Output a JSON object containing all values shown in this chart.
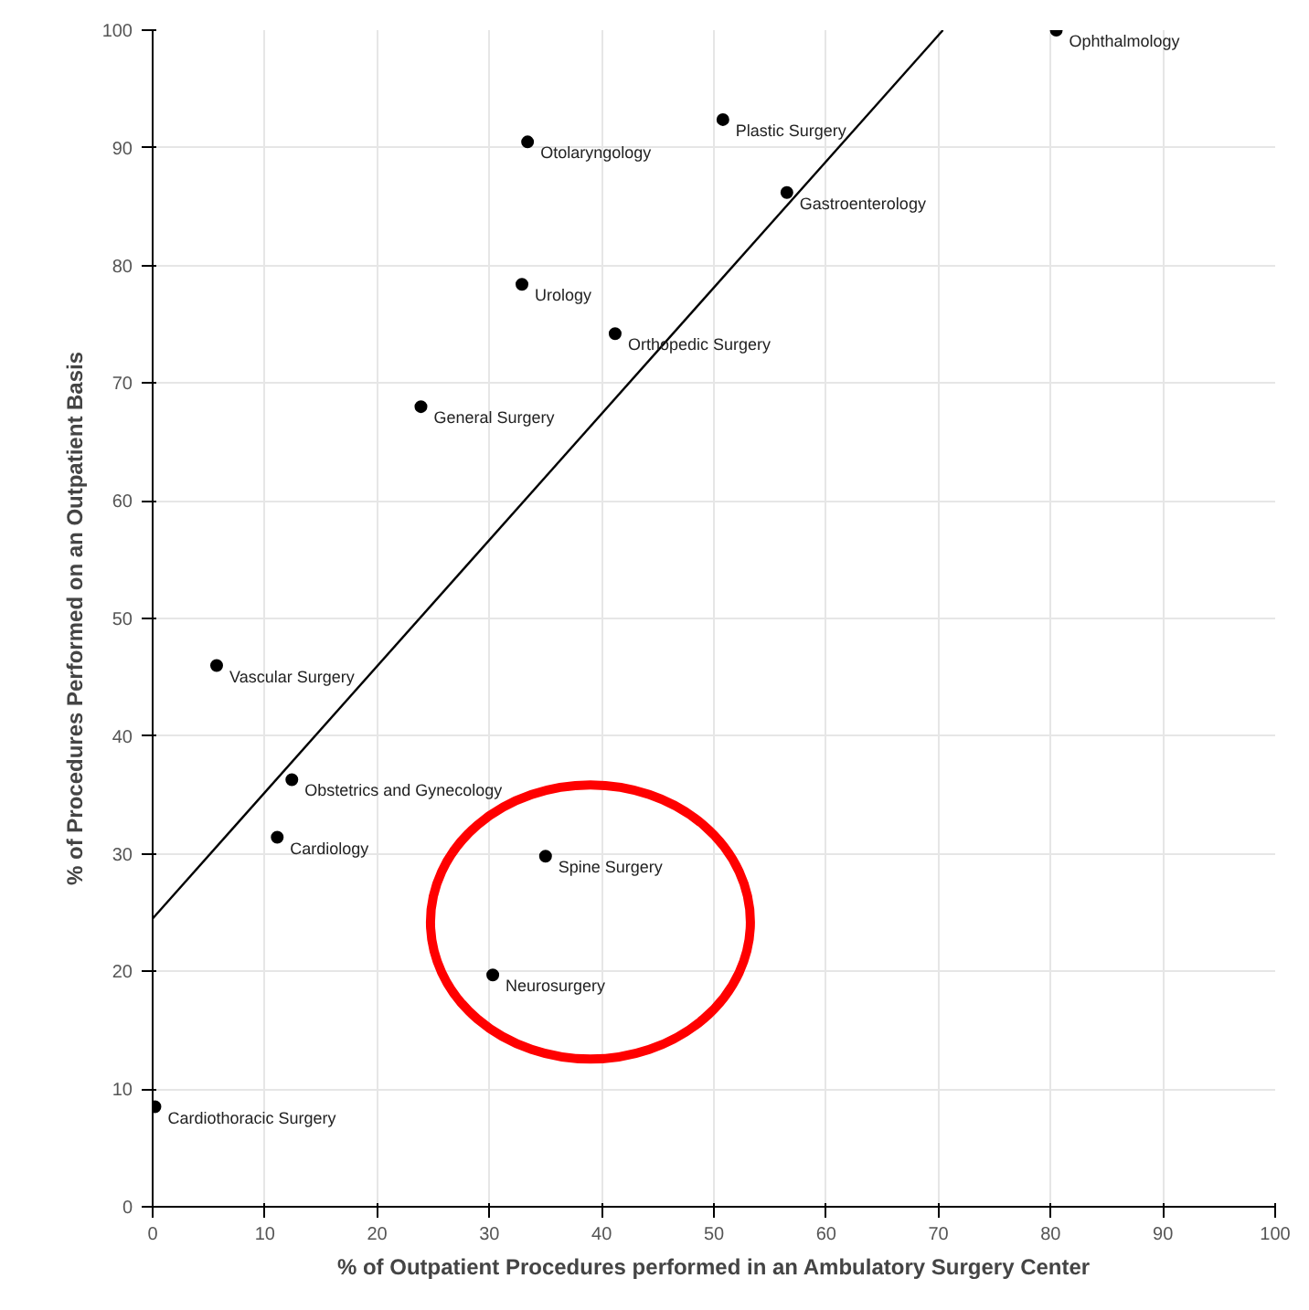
{
  "chart_data": {
    "type": "scatter",
    "xlabel": "% of Outpatient Procedures performed in an Ambulatory Surgery Center",
    "ylabel": "% of Procedures Performed on an Outpatient Basis",
    "xlim": [
      0,
      100
    ],
    "ylim": [
      0,
      100
    ],
    "xticks": [
      0,
      10,
      20,
      30,
      40,
      50,
      60,
      70,
      80,
      90,
      100
    ],
    "yticks": [
      0,
      10,
      20,
      30,
      40,
      50,
      60,
      70,
      80,
      90,
      100
    ],
    "grid": true,
    "series": [
      {
        "marker": "circle",
        "color": "#000000",
        "x": [
          80.5,
          50.8,
          33.4,
          56.5,
          32.9,
          41.2,
          23.9,
          5.7,
          12.4,
          11.1,
          35.0,
          30.3,
          0.2
        ],
        "values": [
          100,
          92.4,
          90.5,
          86.2,
          78.4,
          74.2,
          68,
          46,
          36.3,
          31.4,
          29.8,
          19.7,
          8.5
        ]
      },
      {
        "type": "line",
        "color": "#000000",
        "line_style": "solid",
        "x": [
          0,
          70.4
        ],
        "values": [
          24.5,
          100
        ]
      }
    ],
    "annotations": [
      {
        "text": "Ophthalmology",
        "x": 80.5,
        "y": 100
      },
      {
        "text": "Plastic Surgery",
        "x": 50.8,
        "y": 92.4
      },
      {
        "text": "Otolaryngology",
        "x": 33.4,
        "y": 90.5
      },
      {
        "text": "Gastroenterology",
        "x": 56.5,
        "y": 86.2
      },
      {
        "text": "Urology",
        "x": 32.9,
        "y": 78.4
      },
      {
        "text": "Orthopedic Surgery",
        "x": 41.2,
        "y": 74.2
      },
      {
        "text": "General Surgery",
        "x": 23.9,
        "y": 68
      },
      {
        "text": "Vascular Surgery",
        "x": 5.7,
        "y": 46
      },
      {
        "text": "Obstetrics and Gynecology",
        "x": 12.4,
        "y": 36.3
      },
      {
        "text": "Cardiology",
        "x": 11.1,
        "y": 31.4
      },
      {
        "text": "Spine Surgery",
        "x": 35.0,
        "y": 29.8
      },
      {
        "text": "Neurosurgery",
        "x": 30.3,
        "y": 19.7
      },
      {
        "text": "Cardiothoracic Surgery",
        "x": 0.2,
        "y": 8.5
      }
    ]
  }
}
